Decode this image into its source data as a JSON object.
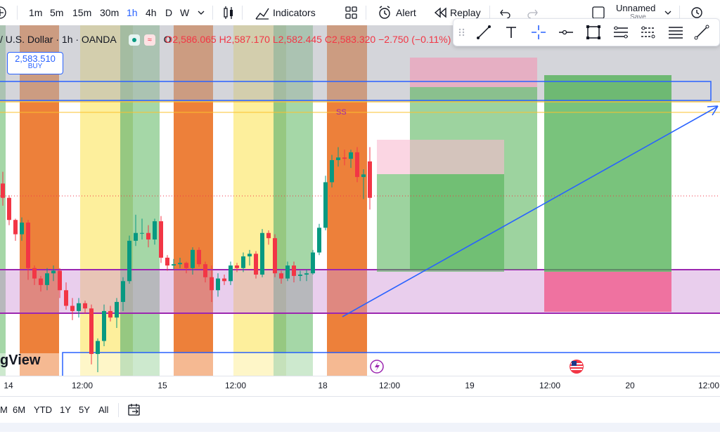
{
  "toolbar": {
    "intervals": [
      "1m",
      "5m",
      "15m",
      "30m",
      "1h",
      "4h",
      "D",
      "W"
    ],
    "active_interval": "1h",
    "indicators_label": "Indicators",
    "alert_label": "Alert",
    "replay_label": "Replay",
    "layout_name": "Unnamed",
    "layout_sub": "Save"
  },
  "legend": {
    "symbol": "/ U.S. Dollar · 1h · OANDA",
    "open": "O2,586.065",
    "high": "H2,587.170",
    "low": "L2,582.445",
    "close": "C2,583.320",
    "change": "−2.750 (−0.11%)"
  },
  "order": {
    "price": "2,583.510",
    "label": "BUY"
  },
  "drawing_toolbar": {
    "tools": [
      "trend-line",
      "text",
      "cross",
      "horizontal-ray",
      "rectangle",
      "fib",
      "pitchfork",
      "lines",
      "ray"
    ]
  },
  "chart": {
    "watermark": "gView",
    "ss_label": "SS",
    "time_labels": [
      "14",
      "12:00",
      "15",
      "12:00",
      "18",
      "12:00",
      "19",
      "12:00",
      "20",
      "12:00"
    ],
    "colors": {
      "up": "#089981",
      "down": "#f23645",
      "orange_zone": "#ea6a17",
      "yellow_zone": "#fbe45a",
      "green_zone": "#4caf50",
      "purple_zone": "#ce93d8",
      "blue_line": "#2962ff",
      "purple_line": "#9c27b0"
    },
    "candles": [
      [
        2584.4,
        2585.3,
        2582.7,
        2583.3
      ],
      [
        2583.3,
        2583.5,
        2581.2,
        2581.6
      ],
      [
        2581.6,
        2581.7,
        2580.0,
        2580.5
      ],
      [
        2580.5,
        2581.8,
        2580.0,
        2581.4
      ],
      [
        2581.4,
        2581.6,
        2577.0,
        2577.9
      ],
      [
        2577.9,
        2578.1,
        2576.6,
        2577.1
      ],
      [
        2577.1,
        2577.3,
        2576.1,
        2576.6
      ],
      [
        2576.6,
        2577.9,
        2576.2,
        2577.5
      ],
      [
        2577.5,
        2578.1,
        2576.9,
        2577.7
      ],
      [
        2577.7,
        2577.9,
        2575.6,
        2576.2
      ],
      [
        2576.2,
        2576.8,
        2574.7,
        2575.0
      ],
      [
        2575.0,
        2575.6,
        2573.9,
        2574.6
      ],
      [
        2574.6,
        2575.6,
        2574.1,
        2575.2
      ],
      [
        2575.2,
        2575.4,
        2574.4,
        2574.8
      ],
      [
        2574.8,
        2575.1,
        2570.5,
        2571.3
      ],
      [
        2571.3,
        2572.5,
        2569.9,
        2572.3
      ],
      [
        2572.3,
        2575.1,
        2571.9,
        2574.6
      ],
      [
        2574.6,
        2575.0,
        2573.8,
        2574.1
      ],
      [
        2574.1,
        2575.6,
        2573.3,
        2575.3
      ],
      [
        2575.3,
        2577.2,
        2574.6,
        2576.9
      ],
      [
        2576.9,
        2580.4,
        2576.7,
        2580.0
      ],
      [
        2580.0,
        2582.0,
        2579.6,
        2580.6
      ],
      [
        2580.6,
        2581.7,
        2580.1,
        2580.6
      ],
      [
        2580.6,
        2581.2,
        2579.5,
        2580.1
      ],
      [
        2580.1,
        2581.7,
        2579.7,
        2581.5
      ],
      [
        2581.5,
        2581.9,
        2578.3,
        2578.7
      ],
      [
        2578.7,
        2578.9,
        2577.7,
        2578.1
      ],
      [
        2578.1,
        2578.6,
        2577.8,
        2578.2
      ],
      [
        2578.2,
        2578.7,
        2577.9,
        2578.3
      ],
      [
        2578.3,
        2578.4,
        2577.5,
        2577.9
      ],
      [
        2577.9,
        2579.5,
        2577.4,
        2579.3
      ],
      [
        2579.3,
        2579.5,
        2578.0,
        2578.2
      ],
      [
        2578.2,
        2578.4,
        2576.8,
        2577.2
      ],
      [
        2577.2,
        2578.1,
        2575.3,
        2576.2
      ],
      [
        2576.2,
        2577.5,
        2575.7,
        2577.1
      ],
      [
        2577.1,
        2577.4,
        2576.6,
        2576.9
      ],
      [
        2576.9,
        2578.4,
        2576.6,
        2578.1
      ],
      [
        2578.1,
        2578.3,
        2577.6,
        2577.9
      ],
      [
        2577.9,
        2579.1,
        2577.6,
        2578.8
      ],
      [
        2578.8,
        2579.3,
        2578.1,
        2579.0
      ],
      [
        2579.0,
        2579.2,
        2577.1,
        2577.4
      ],
      [
        2577.4,
        2580.9,
        2577.2,
        2580.6
      ],
      [
        2580.6,
        2580.8,
        2579.7,
        2580.2
      ],
      [
        2580.2,
        2580.5,
        2577.2,
        2577.5
      ],
      [
        2577.5,
        2577.7,
        2576.7,
        2577.1
      ],
      [
        2577.1,
        2578.4,
        2576.9,
        2578.1
      ],
      [
        2578.1,
        2578.4,
        2576.8,
        2577.3
      ],
      [
        2577.3,
        2577.7,
        2576.9,
        2577.4
      ],
      [
        2577.4,
        2577.8,
        2576.9,
        2577.5
      ],
      [
        2577.5,
        2579.3,
        2577.4,
        2579.1
      ],
      [
        2579.1,
        2581.3,
        2578.9,
        2581.0
      ],
      [
        2581.0,
        2585.0,
        2580.8,
        2584.5
      ],
      [
        2584.5,
        2586.6,
        2584.1,
        2586.2
      ],
      [
        2586.2,
        2587.2,
        2585.7,
        2586.4
      ],
      [
        2586.4,
        2587.0,
        2585.8,
        2586.3
      ],
      [
        2586.3,
        2587.0,
        2585.6,
        2586.8
      ],
      [
        2586.8,
        2587.2,
        2584.5,
        2584.9
      ],
      [
        2584.9,
        2585.5,
        2583.2,
        2585.1
      ],
      [
        2586.1,
        2587.2,
        2582.4,
        2583.3
      ]
    ]
  },
  "bottombar": {
    "ranges": [
      "M",
      "6M",
      "YTD",
      "1Y",
      "5Y",
      "All"
    ]
  }
}
